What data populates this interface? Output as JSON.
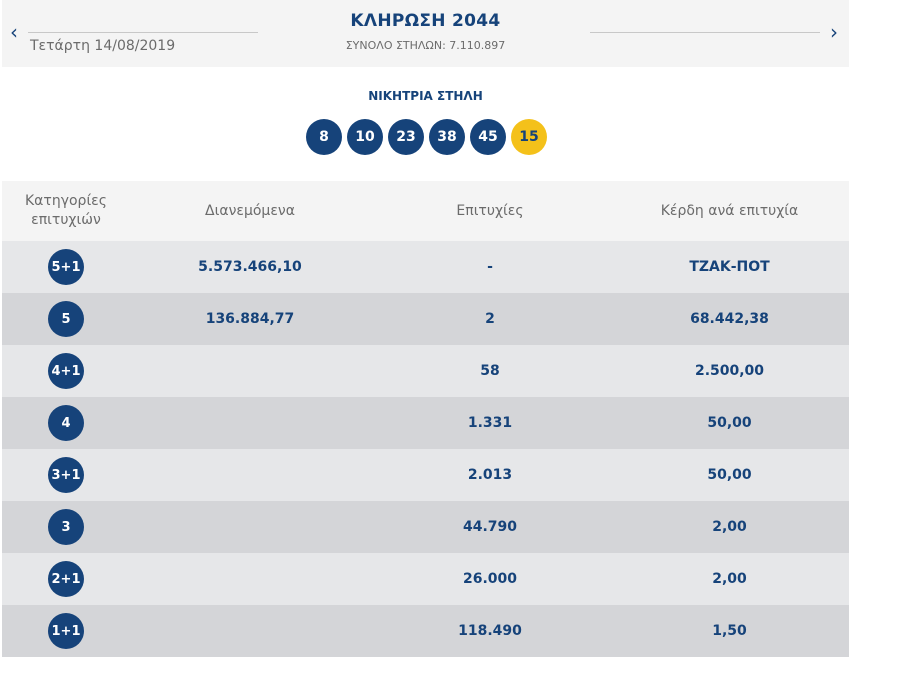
{
  "header": {
    "date": "Τετάρτη 14/08/2019",
    "title": "ΚΛΗΡΩΣΗ 2044",
    "total_columns": "ΣΥΝΟΛΟ ΣΤΗΛΩΝ: 7.110.897",
    "prev_icon": "‹",
    "next_icon": "›"
  },
  "winning": {
    "label": "ΝΙΚΗΤΡΙΑ ΣΤΗΛΗ",
    "numbers": [
      "8",
      "10",
      "23",
      "38",
      "45"
    ],
    "joker": "15"
  },
  "table": {
    "headers": {
      "category": "Κατηγορίες επιτυχιών",
      "distributed": "Διανεμόμενα",
      "winners": "Επιτυχίες",
      "payout": "Κέρδη ανά επιτυχία"
    },
    "rows": [
      {
        "category": "5+1",
        "distributed": "5.573.466,10",
        "winners": "-",
        "payout": "ΤΖΑΚ-ΠΟΤ"
      },
      {
        "category": "5",
        "distributed": "136.884,77",
        "winners": "2",
        "payout": "68.442,38"
      },
      {
        "category": "4+1",
        "distributed": "",
        "winners": "58",
        "payout": "2.500,00"
      },
      {
        "category": "4",
        "distributed": "",
        "winners": "1.331",
        "payout": "50,00"
      },
      {
        "category": "3+1",
        "distributed": "",
        "winners": "2.013",
        "payout": "50,00"
      },
      {
        "category": "3",
        "distributed": "",
        "winners": "44.790",
        "payout": "2,00"
      },
      {
        "category": "2+1",
        "distributed": "",
        "winners": "26.000",
        "payout": "2,00"
      },
      {
        "category": "1+1",
        "distributed": "",
        "winners": "118.490",
        "payout": "1,50"
      }
    ]
  },
  "colors": {
    "brand_navy": "#16437a",
    "joker_yellow": "#f4c11a",
    "row_light": "#e6e7e9",
    "row_dark": "#d4d5d8"
  }
}
